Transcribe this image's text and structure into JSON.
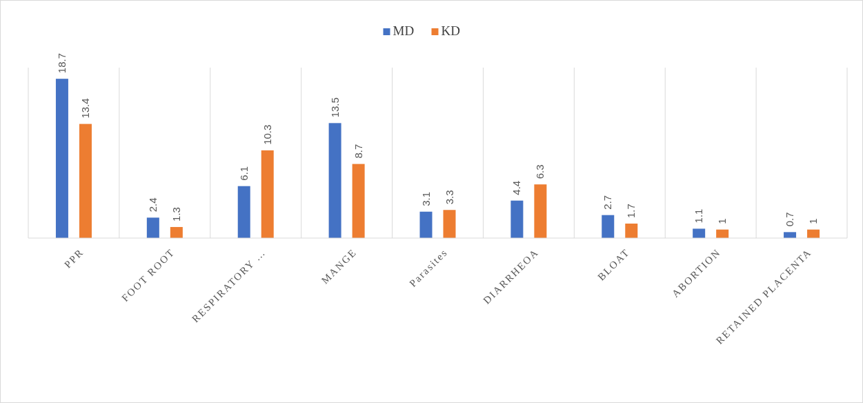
{
  "chart_data": {
    "type": "bar",
    "categories": [
      "PPR",
      "FOOT ROOT",
      "RESPIRATORY …",
      "MANGE",
      "Parasites",
      "DIARRHEOA",
      "BLOAT",
      "ABORTION",
      "RETAINED PLACENTA"
    ],
    "series": [
      {
        "name": "MD",
        "color": "#4472c4",
        "values": [
          18.7,
          2.4,
          6.1,
          13.5,
          3.1,
          4.4,
          2.7,
          1.1,
          0.7
        ]
      },
      {
        "name": "KD",
        "color": "#ed7d31",
        "values": [
          13.4,
          1.3,
          10.3,
          8.7,
          3.3,
          6.3,
          1.7,
          1,
          1
        ]
      }
    ],
    "data_labels": true,
    "grid": "x",
    "legend": "top"
  }
}
